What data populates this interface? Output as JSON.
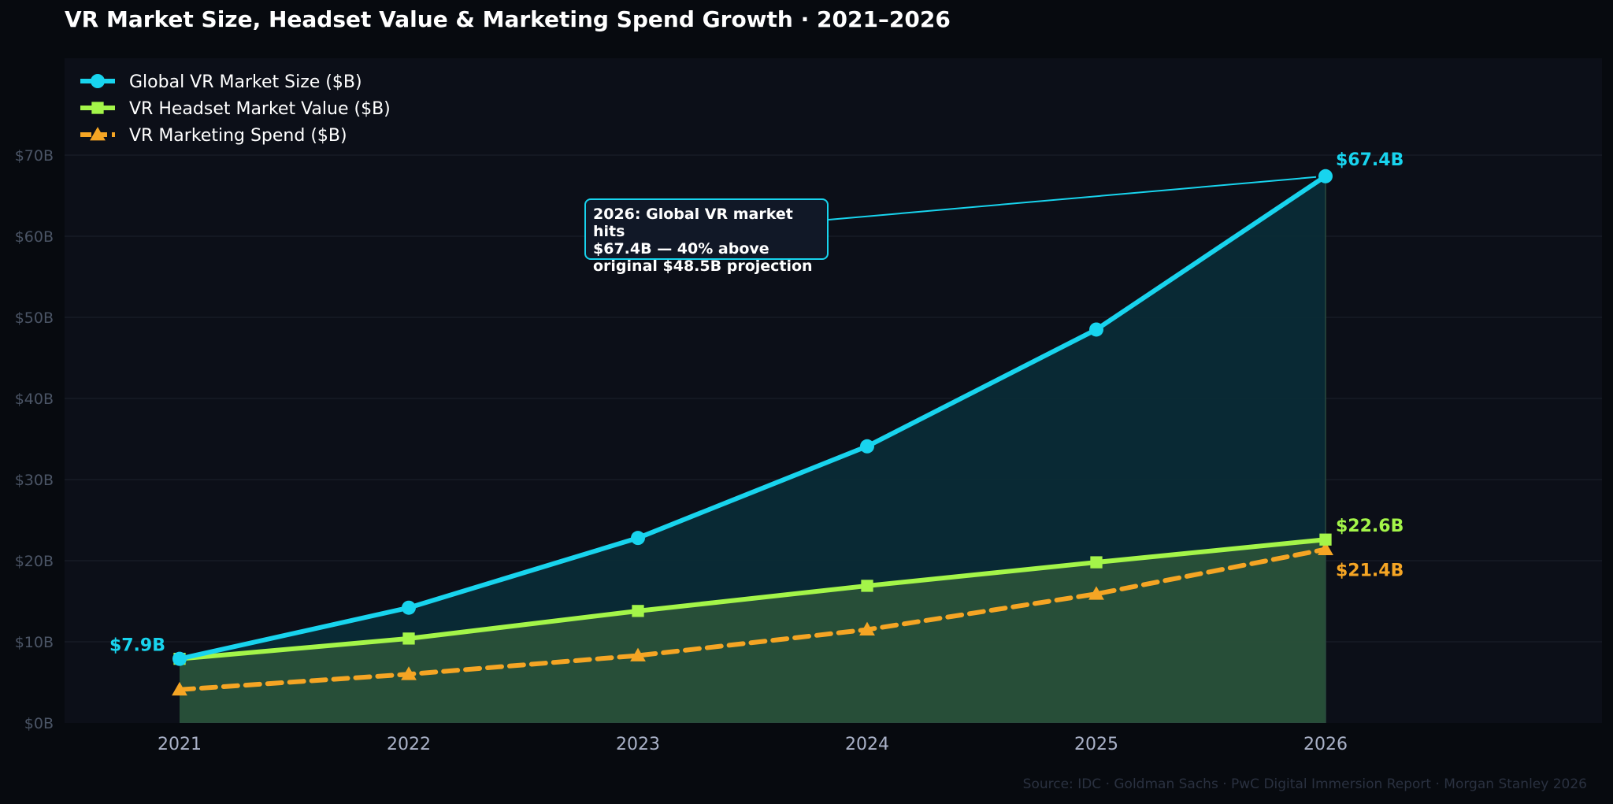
{
  "chart_data": {
    "type": "line",
    "title": "VR Market Size, Headset Value & Marketing Spend Growth · 2021–2026",
    "xlabel": "",
    "ylabel": "",
    "x": [
      "2021",
      "2022",
      "2023",
      "2024",
      "2025",
      "2026"
    ],
    "ylim": [
      0,
      80
    ],
    "yticks": [
      0,
      10,
      20,
      30,
      40,
      50,
      60,
      70
    ],
    "ytick_labels": [
      "$0B",
      "$10B",
      "$20B",
      "$30B",
      "$40B",
      "$50B",
      "$60B",
      "$70B"
    ],
    "grid": true,
    "legend_position": "top-left",
    "series": [
      {
        "name": "Global VR Market Size ($B)",
        "values": [
          7.9,
          14.2,
          22.8,
          34.1,
          48.5,
          67.4
        ],
        "color": "#18d4ee",
        "marker": "circle",
        "style": "solid",
        "fill": true,
        "end_label": "$67.4B",
        "start_label": "$7.9B"
      },
      {
        "name": "VR Headset Market Value ($B)",
        "values": [
          7.9,
          10.4,
          13.8,
          16.9,
          19.8,
          22.6
        ],
        "color": "#a4f549",
        "marker": "square",
        "style": "solid",
        "fill": true,
        "end_label": "$22.6B"
      },
      {
        "name": "VR Marketing Spend ($B)",
        "values": [
          4.1,
          6.0,
          8.3,
          11.5,
          15.9,
          21.4
        ],
        "color": "#f5a524",
        "marker": "triangle",
        "style": "dashed",
        "fill": false,
        "end_label": "$21.4B"
      }
    ],
    "annotation": {
      "text": "2026: Global VR market hits\n$67.4B — 40% above\noriginal $48.5B projection",
      "target_x": "2026",
      "target_y": 67.4
    },
    "source": "Source: IDC · Goldman Sachs · PwC Digital Immersion Report · Morgan Stanley 2026"
  }
}
